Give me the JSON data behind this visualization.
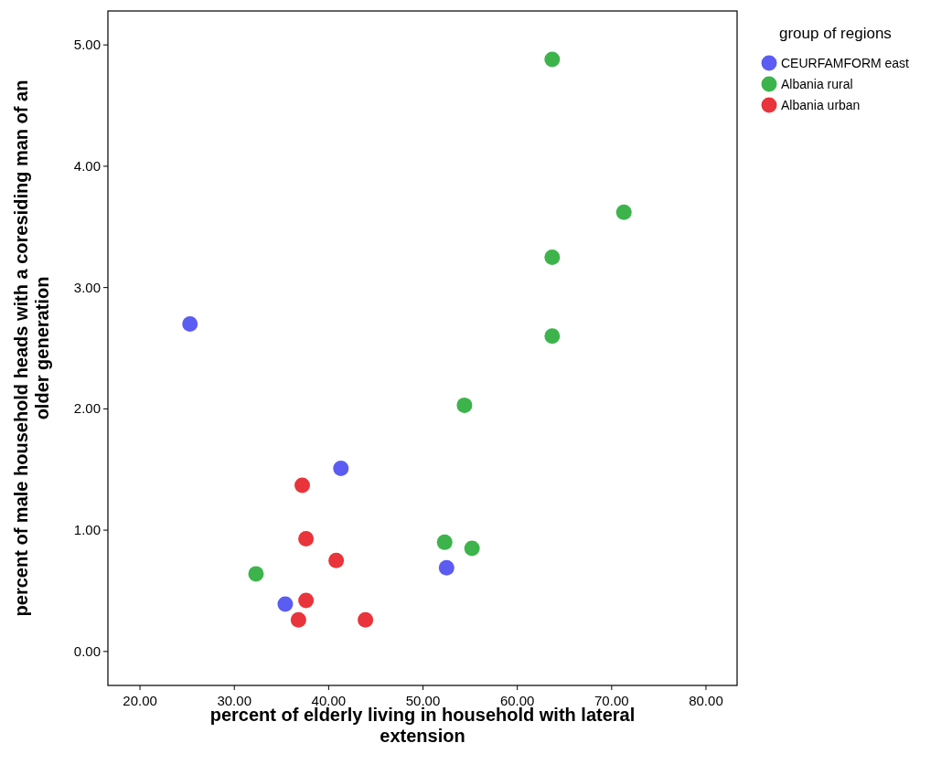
{
  "chart_data": {
    "type": "scatter",
    "xlabel": "percent of elderly living in household with lateral extension",
    "ylabel": "percent of male household heads with a coresiding man of an older generation",
    "legend_title": "group of regions",
    "legend": "right",
    "marker": "circle",
    "grid": false,
    "xlim": [
      16.6,
      83.3
    ],
    "ylim": [
      -0.28,
      5.28
    ],
    "xticks": [
      {
        "value": 20,
        "label": "20.00"
      },
      {
        "value": 30,
        "label": "30.00"
      },
      {
        "value": 40,
        "label": "40.00"
      },
      {
        "value": 50,
        "label": "50.00"
      },
      {
        "value": 60,
        "label": "60.00"
      },
      {
        "value": 70,
        "label": "70.00"
      },
      {
        "value": 80,
        "label": "80.00"
      }
    ],
    "yticks": [
      {
        "value": 0,
        "label": "0.00"
      },
      {
        "value": 1,
        "label": "1.00"
      },
      {
        "value": 2,
        "label": "2.00"
      },
      {
        "value": 3,
        "label": "3.00"
      },
      {
        "value": 4,
        "label": "4.00"
      },
      {
        "value": 5,
        "label": "5.00"
      }
    ],
    "series": [
      {
        "name": "CEURFAMFORM east",
        "color": "#5b5cf2",
        "x": [
          25.3,
          41.3,
          52.5,
          35.4
        ],
        "values": [
          2.7,
          1.51,
          0.69,
          0.39
        ]
      },
      {
        "name": "Albania rural",
        "color": "#3cb44b",
        "x": [
          63.7,
          71.3,
          63.7,
          63.7,
          54.4,
          52.3,
          55.2,
          32.3
        ],
        "values": [
          4.88,
          3.62,
          3.25,
          2.6,
          2.03,
          0.9,
          0.85,
          0.64
        ]
      },
      {
        "name": "Albania urban",
        "color": "#e8343a",
        "x": [
          37.2,
          37.6,
          40.8,
          37.6,
          36.8,
          43.9
        ],
        "values": [
          1.37,
          0.93,
          0.75,
          0.42,
          0.26,
          0.26
        ]
      }
    ]
  }
}
